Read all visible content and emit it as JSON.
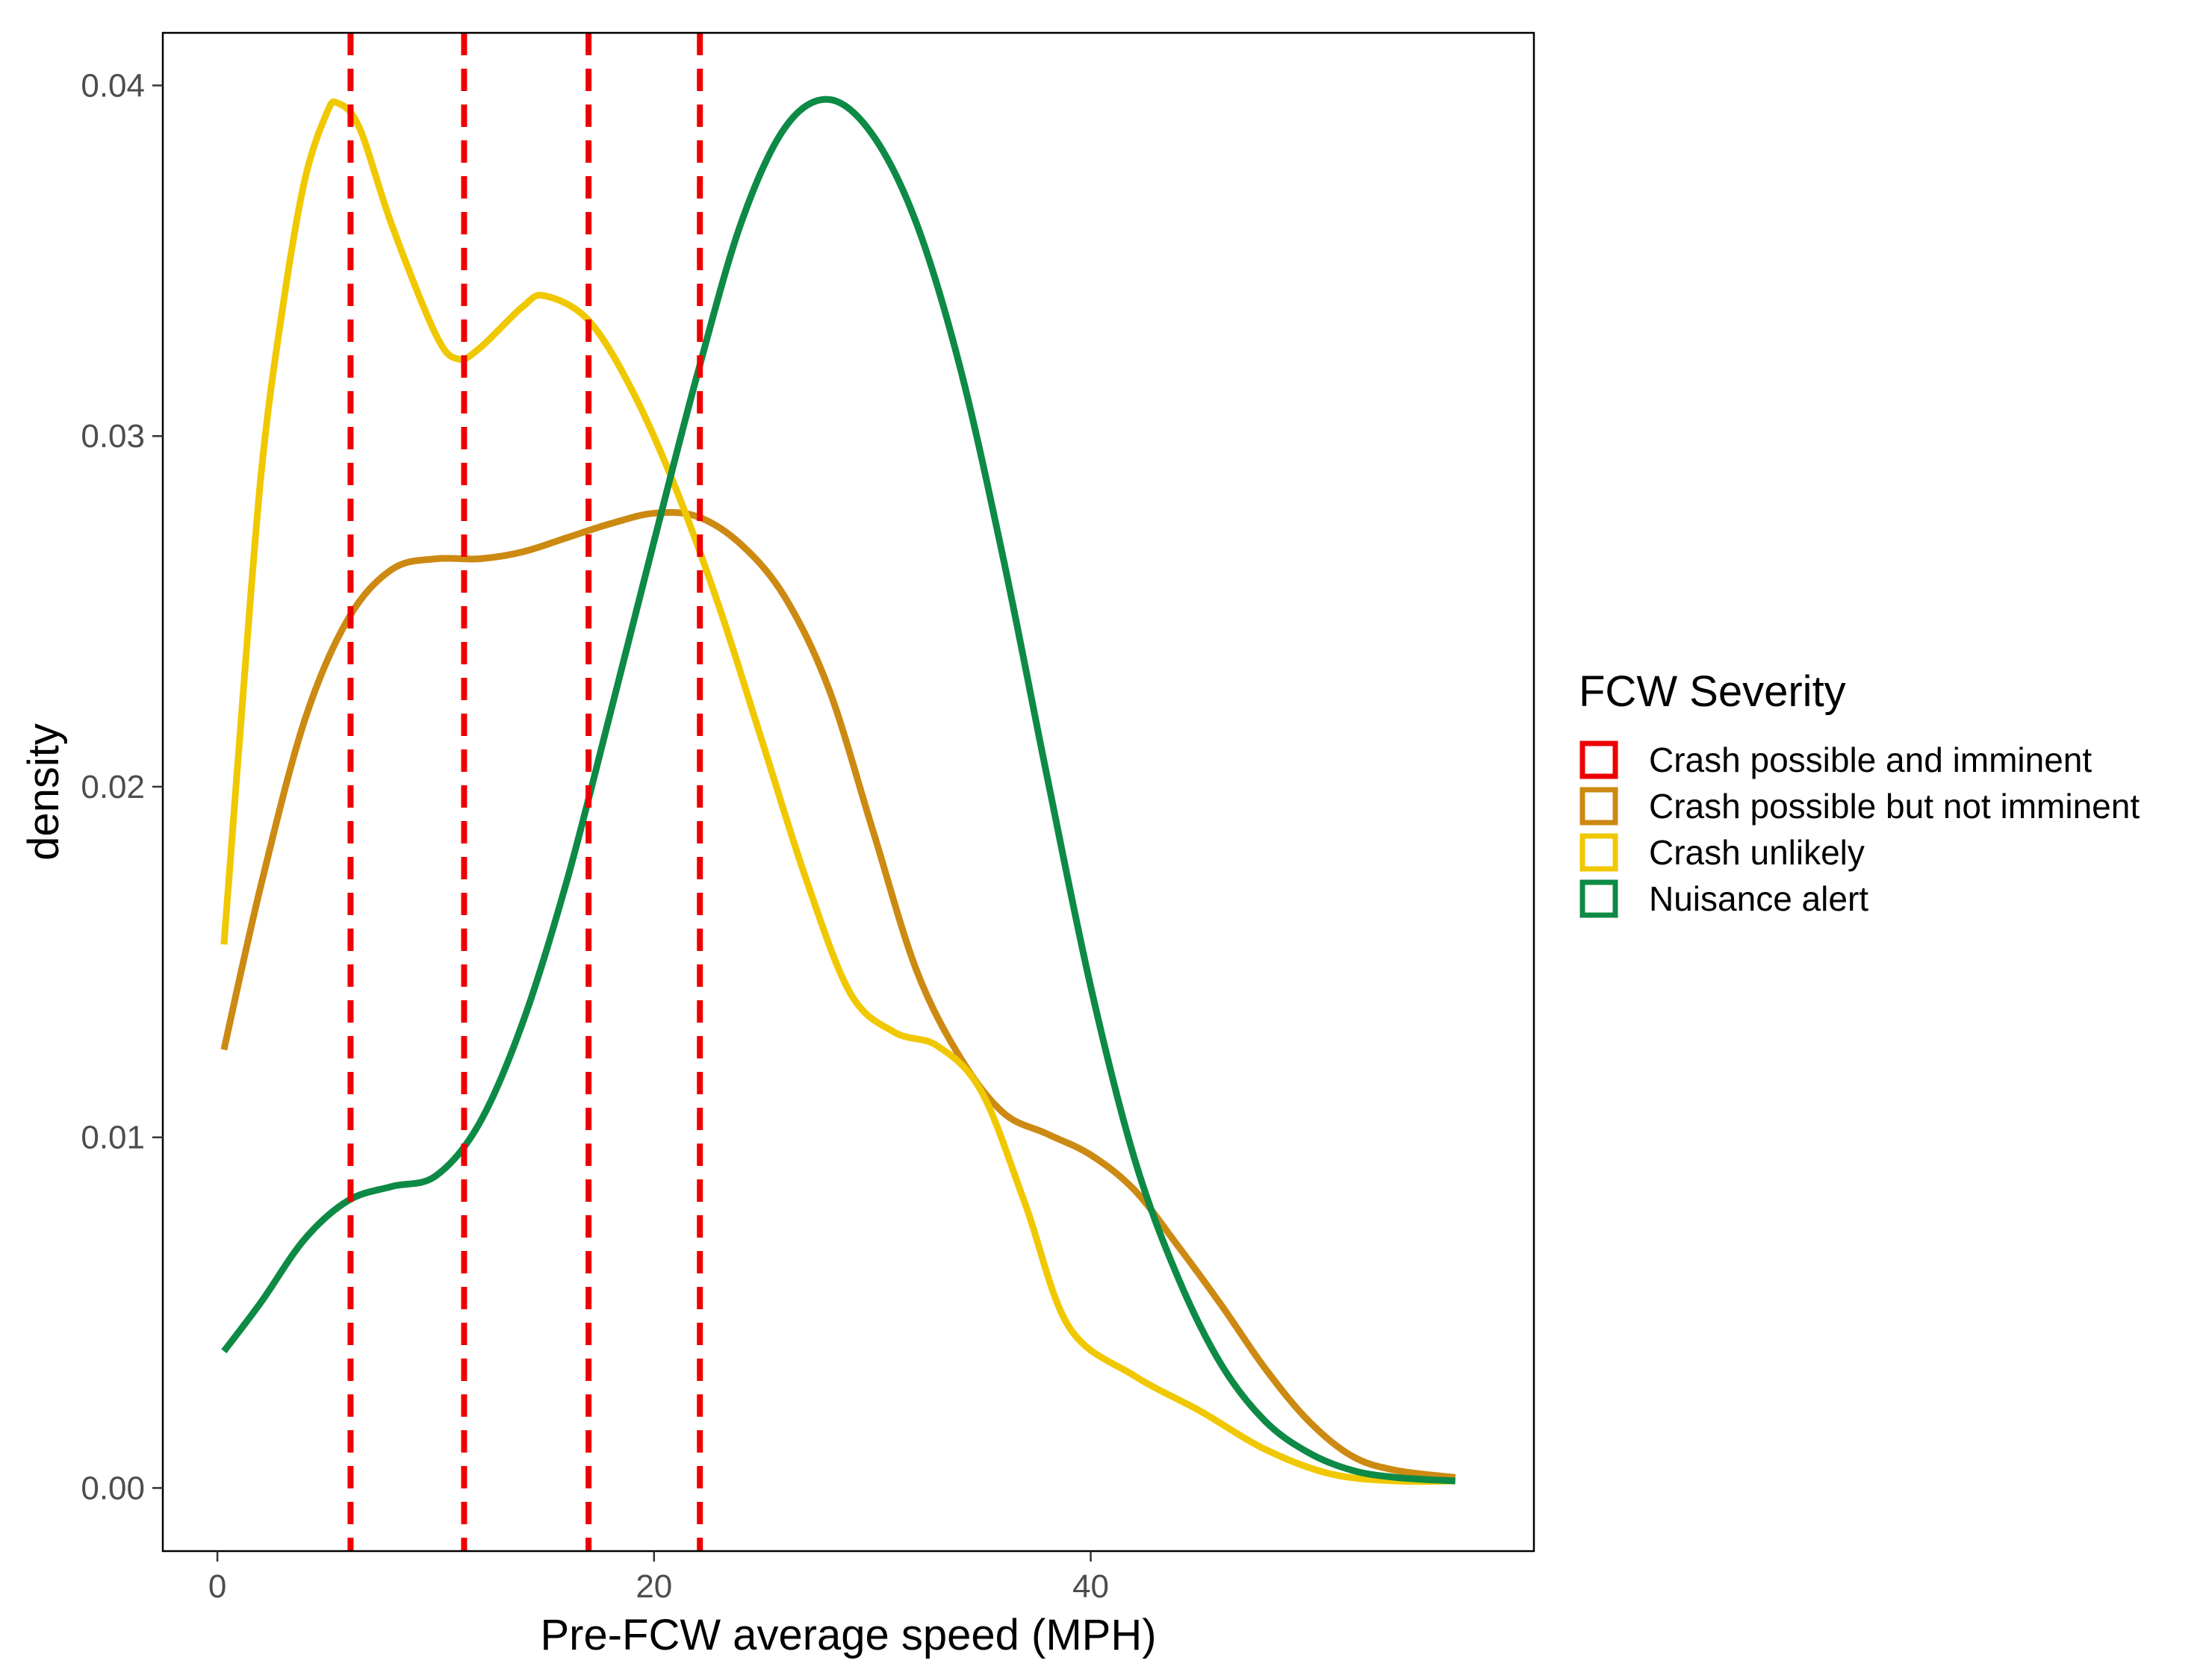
{
  "chart_data": {
    "type": "line",
    "subtype": "density",
    "xlabel": "Pre-FCW average speed (MPH)",
    "ylabel": "density",
    "xlim": [
      -2.5,
      60.3
    ],
    "ylim": [
      -0.0018,
      0.0415
    ],
    "x_ticks": [
      0,
      20,
      40
    ],
    "x_tick_labels": [
      "0",
      "20",
      "40"
    ],
    "y_ticks": [
      0.0,
      0.01,
      0.02,
      0.03,
      0.04
    ],
    "y_tick_labels": [
      "0.00",
      "0.01",
      "0.02",
      "0.03",
      "0.04"
    ],
    "grid": false,
    "legend": {
      "title": "FCW Severity",
      "position": "right",
      "entries": [
        {
          "label": "Crash possible and imminent",
          "color": "#ee0000"
        },
        {
          "label": "Crash possible but not imminent",
          "color": "#cc8a12"
        },
        {
          "label": "Crash unlikely",
          "color": "#f0c800"
        },
        {
          "label": "Nuisance alert",
          "color": "#0d8a45"
        }
      ]
    },
    "vlines": {
      "series": "Crash possible and imminent",
      "color": "#ee0000",
      "style": "dashed",
      "x": [
        6.1,
        11.3,
        17.0,
        22.1
      ]
    },
    "series": [
      {
        "name": "Crash possible but not imminent",
        "color": "#cc8a12",
        "x": [
          0.3,
          2,
          4,
          6,
          8,
          10,
          12,
          14,
          16,
          18,
          20,
          22,
          24,
          26,
          28,
          30,
          32,
          34,
          36,
          38,
          40,
          42,
          44,
          46,
          48,
          50,
          52,
          54,
          56.7
        ],
        "y": [
          0.0125,
          0.0172,
          0.0219,
          0.0248,
          0.0262,
          0.0265,
          0.0265,
          0.0267,
          0.0271,
          0.0275,
          0.0278,
          0.0277,
          0.0269,
          0.0254,
          0.0228,
          0.0188,
          0.0148,
          0.0123,
          0.0107,
          0.0101,
          0.0095,
          0.0085,
          0.0069,
          0.0052,
          0.0034,
          0.0019,
          0.0009,
          0.0005,
          0.0003
        ]
      },
      {
        "name": "Crash unlikely",
        "color": "#f0c800",
        "x": [
          0.3,
          1,
          2,
          3,
          4,
          5,
          5.5,
          6.5,
          8,
          10,
          11,
          12,
          14,
          15,
          17,
          19,
          21,
          23,
          25,
          27,
          29,
          31,
          33,
          35,
          37,
          39,
          42,
          45,
          48,
          51,
          54,
          56.7
        ],
        "y": [
          0.0155,
          0.0212,
          0.0289,
          0.0337,
          0.0373,
          0.0392,
          0.0395,
          0.0388,
          0.036,
          0.0329,
          0.0322,
          0.0325,
          0.0337,
          0.034,
          0.0333,
          0.0313,
          0.0285,
          0.0251,
          0.0212,
          0.0173,
          0.0141,
          0.013,
          0.0126,
          0.0113,
          0.0081,
          0.0046,
          0.0032,
          0.0022,
          0.0011,
          0.0004,
          0.0002,
          0.0002
        ]
      },
      {
        "name": "Nuisance alert",
        "color": "#0d8a45",
        "x": [
          0.3,
          2,
          4,
          6,
          8,
          10,
          12,
          14,
          16,
          18,
          20,
          22,
          24,
          26,
          28,
          30,
          32,
          34,
          36,
          38,
          40,
          42,
          44,
          46,
          48,
          50,
          52,
          54,
          56.7
        ],
        "y": [
          0.0039,
          0.0053,
          0.0071,
          0.0082,
          0.0086,
          0.0089,
          0.0104,
          0.0133,
          0.0173,
          0.0221,
          0.027,
          0.0318,
          0.0361,
          0.0388,
          0.0396,
          0.0386,
          0.0361,
          0.032,
          0.0265,
          0.0203,
          0.0143,
          0.0094,
          0.006,
          0.0035,
          0.0019,
          0.001,
          0.0005,
          0.0003,
          0.0002
        ]
      }
    ]
  }
}
